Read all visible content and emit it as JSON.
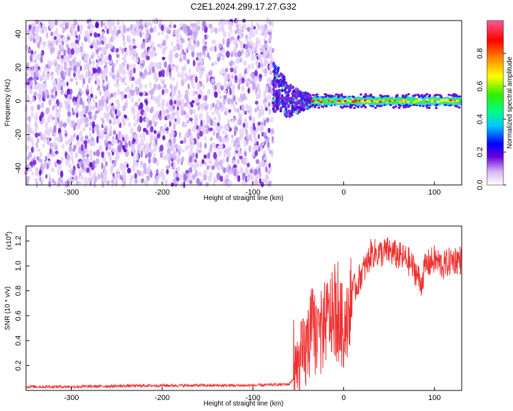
{
  "title": "C2E1.2024.299.17.27.G32",
  "chart_data": [
    {
      "type": "heatmap",
      "xlabel": "Height of straight line (km)",
      "ylabel": "Frequency (Hz)",
      "xlim": [
        -350,
        130
      ],
      "ylim": [
        -50,
        48
      ],
      "xticks": [
        "-300",
        "-200",
        "-100",
        "0",
        "100"
      ],
      "yticks": [
        "-40",
        "-20",
        "0",
        "20",
        "40"
      ],
      "colorbar": {
        "label": "Normalized spectral amplitude",
        "range": [
          0.0,
          1.0
        ],
        "ticks": [
          "0.0",
          "0.2",
          "0.4",
          "0.6",
          "0.8"
        ]
      },
      "regions": [
        {
          "x": [
            -350,
            -78
          ],
          "y": [
            -50,
            48
          ],
          "description": "broadband low-amplitude purple noise"
        },
        {
          "x": [
            -78,
            -35
          ],
          "y": [
            -15,
            15
          ],
          "description": "converging spectral feature"
        },
        {
          "x": [
            -35,
            130
          ],
          "y": [
            -3,
            3
          ],
          "description": "narrow band near 0 Hz, amplitude 0.6-1.0"
        }
      ]
    },
    {
      "type": "line",
      "xlabel": "Height of straight line (km)",
      "ylabel": "SNR (10 * v/v)",
      "exponent_label": "(x10",
      "exponent_power": "4",
      "exponent_close": ")",
      "xlim": [
        -350,
        130
      ],
      "ylim": [
        0,
        1.32
      ],
      "xticks": [
        "-300",
        "-200",
        "-100",
        "0",
        "100"
      ],
      "yticks": [
        "0.2",
        "0.4",
        "0.6",
        "0.8",
        "1.0",
        "1.2"
      ],
      "series": [
        {
          "color": "#ee3030",
          "x": [
            -350,
            -300,
            -250,
            -200,
            -150,
            -100,
            -60,
            -50,
            -40,
            -35,
            -30,
            -25,
            -20,
            -15,
            -10,
            -5,
            0,
            5,
            10,
            15,
            20,
            25,
            30,
            40,
            50,
            60,
            70,
            80,
            85,
            90,
            100,
            110,
            120,
            130
          ],
          "y": [
            0.03,
            0.03,
            0.035,
            0.04,
            0.04,
            0.04,
            0.05,
            0.15,
            0.35,
            0.5,
            0.45,
            0.45,
            0.55,
            0.6,
            0.6,
            0.55,
            0.5,
            0.65,
            0.8,
            0.85,
            0.95,
            1.0,
            1.1,
            1.1,
            1.12,
            1.08,
            1.05,
            0.95,
            0.85,
            1.0,
            1.05,
            1.0,
            1.05,
            1.05
          ]
        }
      ]
    }
  ]
}
